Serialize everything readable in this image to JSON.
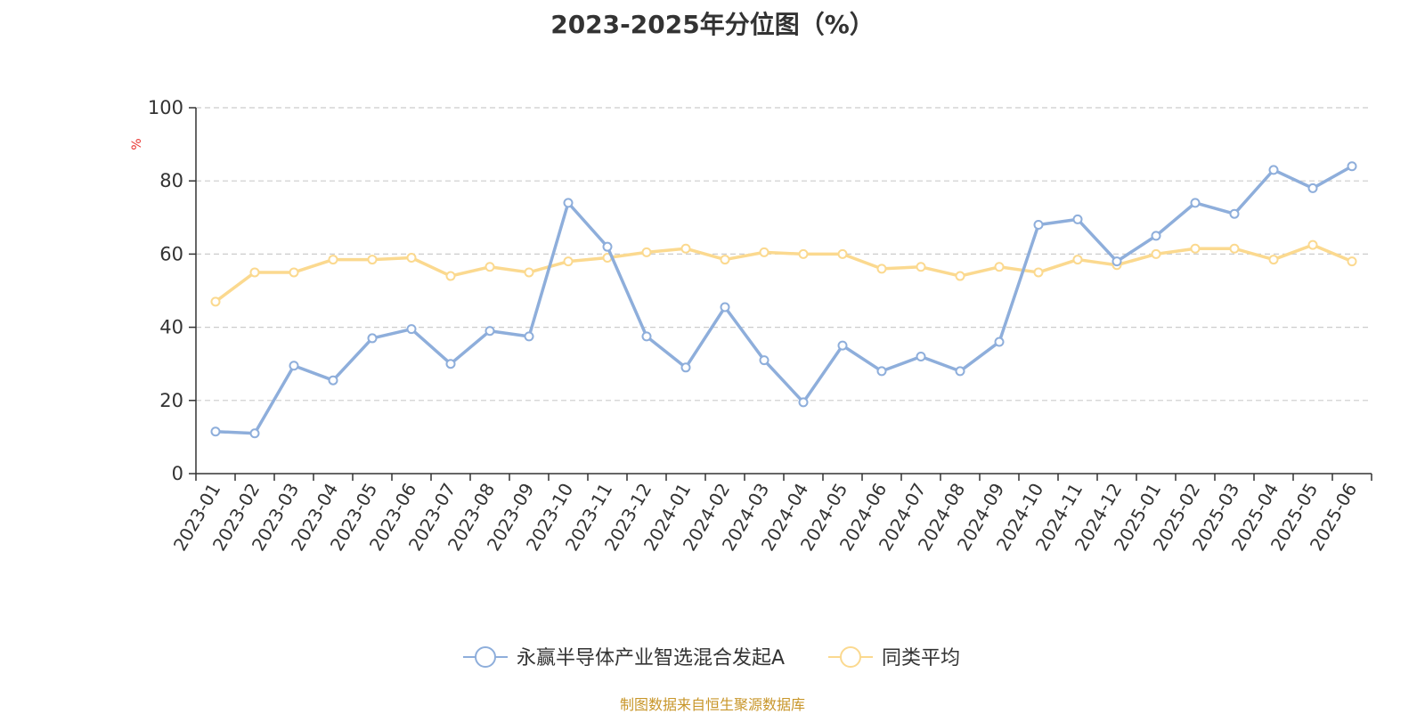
{
  "chart_data": {
    "type": "line",
    "title": "2023-2025年分位图（%）",
    "ylabel": "%",
    "xlabel": "",
    "ylim": [
      0,
      100
    ],
    "yticks": [
      0,
      20,
      40,
      60,
      80,
      100
    ],
    "grid": "horizontal-dashed",
    "legend_position": "bottom",
    "categories": [
      "2023-01",
      "2023-02",
      "2023-03",
      "2023-04",
      "2023-05",
      "2023-06",
      "2023-07",
      "2023-08",
      "2023-09",
      "2023-10",
      "2023-11",
      "2023-12",
      "2024-01",
      "2024-02",
      "2024-03",
      "2024-04",
      "2024-05",
      "2024-06",
      "2024-07",
      "2024-08",
      "2024-09",
      "2024-10",
      "2024-11",
      "2024-12",
      "2025-01",
      "2025-02",
      "2025-03",
      "2025-04",
      "2025-05",
      "2025-06"
    ],
    "series": [
      {
        "name": "永赢半导体产业智选混合发起A",
        "color": "#8eaedb",
        "values": [
          11.5,
          11,
          29.5,
          25.5,
          37,
          39.5,
          30,
          39,
          37.5,
          74,
          62,
          37.5,
          29,
          45.5,
          31,
          19.5,
          35,
          28,
          32,
          28,
          36,
          68,
          69.5,
          58,
          65,
          74,
          71,
          83,
          78,
          84
        ]
      },
      {
        "name": "同类平均",
        "color": "#fbd98f",
        "values": [
          47,
          55,
          55,
          58.5,
          58.5,
          59,
          54,
          56.5,
          55,
          58,
          59,
          60.5,
          61.5,
          58.5,
          60.5,
          60,
          60,
          56,
          56.5,
          54,
          56.5,
          55,
          58.5,
          57,
          60,
          61.5,
          61.5,
          58.5,
          62.5,
          58
        ]
      }
    ]
  },
  "footer": {
    "source": "制图数据来自恒生聚源数据库"
  }
}
